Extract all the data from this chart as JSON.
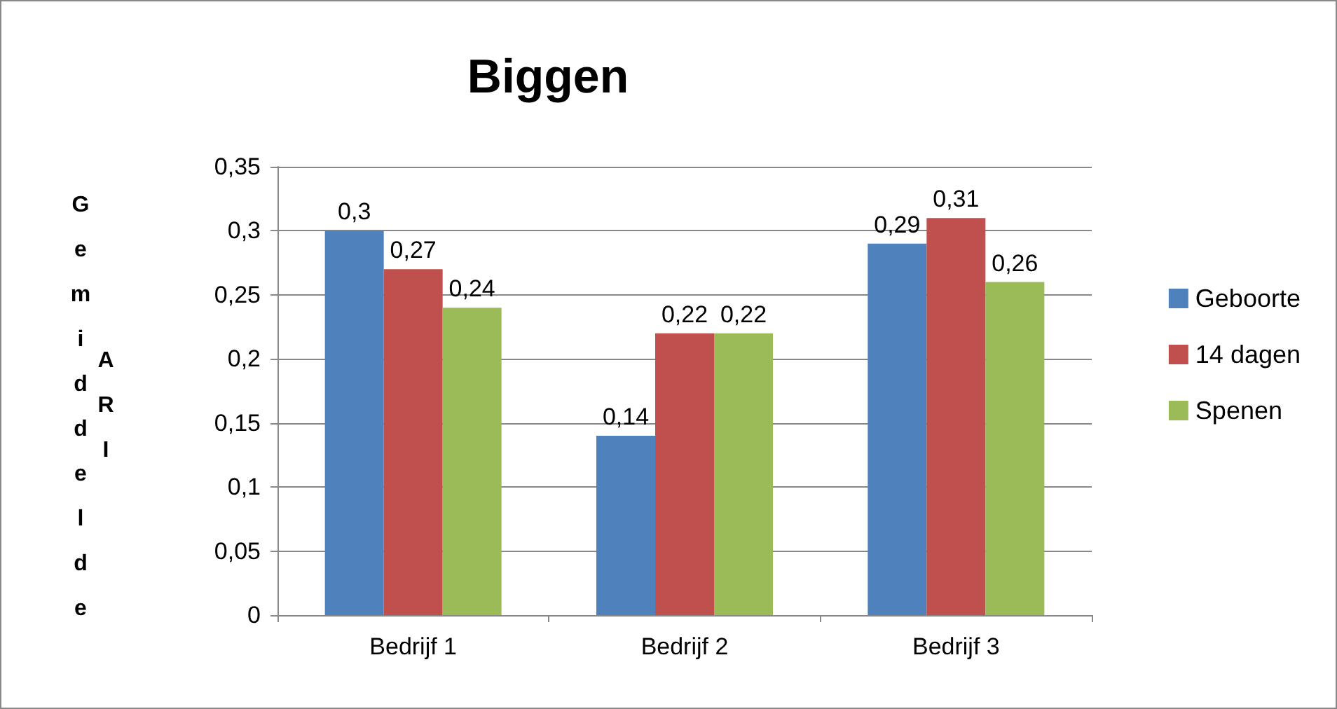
{
  "chart_data": {
    "type": "bar",
    "title": "Biggen",
    "ylabel": "Gemiddelde ARI",
    "categories": [
      "Bedrijf 1",
      "Bedrijf 2",
      "Bedrijf 3"
    ],
    "series": [
      {
        "name": "Geboorte",
        "color": "#4f81bd",
        "values": [
          0.3,
          0.14,
          0.29
        ],
        "value_labels": [
          "0,3",
          "0,14",
          "0,29"
        ]
      },
      {
        "name": "14 dagen",
        "color": "#c0504d",
        "values": [
          0.27,
          0.22,
          0.31
        ],
        "value_labels": [
          "0,27",
          "0,22",
          "0,31"
        ]
      },
      {
        "name": "Spenen",
        "color": "#9bbb59",
        "values": [
          0.24,
          0.22,
          0.26
        ],
        "value_labels": [
          "0,24",
          "0,22",
          "0,26"
        ]
      }
    ],
    "ylim": [
      0,
      0.35
    ],
    "yticks": [
      0,
      {
        "value": 0.05,
        "label": "0,05"
      },
      {
        "value": 0.1,
        "label": "0,1"
      },
      {
        "value": 0.15,
        "label": "0,15"
      },
      {
        "value": 0.2,
        "label": "0,2"
      },
      {
        "value": 0.25,
        "label": "0,25"
      },
      {
        "value": 0.3,
        "label": "0,3"
      },
      {
        "value": 0.35,
        "label": "0,35"
      }
    ],
    "grid": "y",
    "legend": "right"
  }
}
